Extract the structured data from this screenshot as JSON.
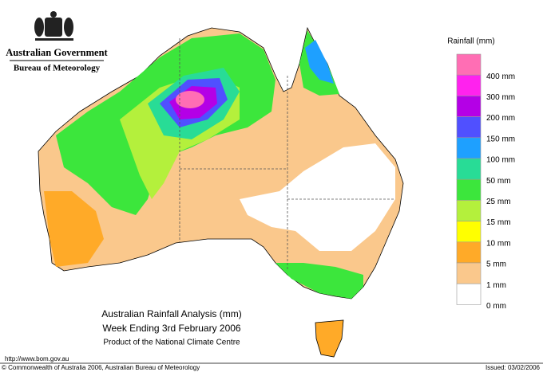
{
  "header": {
    "government": "Australian Government",
    "agency": "Bureau of Meteorology"
  },
  "title": {
    "line1": "Australian Rainfall Analysis (mm)",
    "line2": "Week Ending 3rd February 2006",
    "line3": "Product of the National Climate Centre"
  },
  "legend": {
    "title": "Rainfall (mm)",
    "items": [
      {
        "label": "400 mm",
        "color": "#ff6eb4"
      },
      {
        "label": "300 mm",
        "color": "#ff22ee"
      },
      {
        "label": "200 mm",
        "color": "#b400e6"
      },
      {
        "label": "150 mm",
        "color": "#5050ff"
      },
      {
        "label": "100 mm",
        "color": "#1ea0ff"
      },
      {
        "label": "50 mm",
        "color": "#28dc96"
      },
      {
        "label": "25 mm",
        "color": "#3ce63c"
      },
      {
        "label": "15 mm",
        "color": "#b4f03c"
      },
      {
        "label": "10 mm",
        "color": "#ffff00"
      },
      {
        "label": "5 mm",
        "color": "#ffaa28"
      },
      {
        "label": "1 mm",
        "color": "#fac88c"
      },
      {
        "label": "0 mm",
        "color": "#ffffff"
      }
    ]
  },
  "footer": {
    "url": "http://www.bom.gov.au",
    "copyright": "© Commonwealth of Australia 2006, Australian Bureau of Meteorology",
    "issued": "Issued: 03/02/2006"
  }
}
